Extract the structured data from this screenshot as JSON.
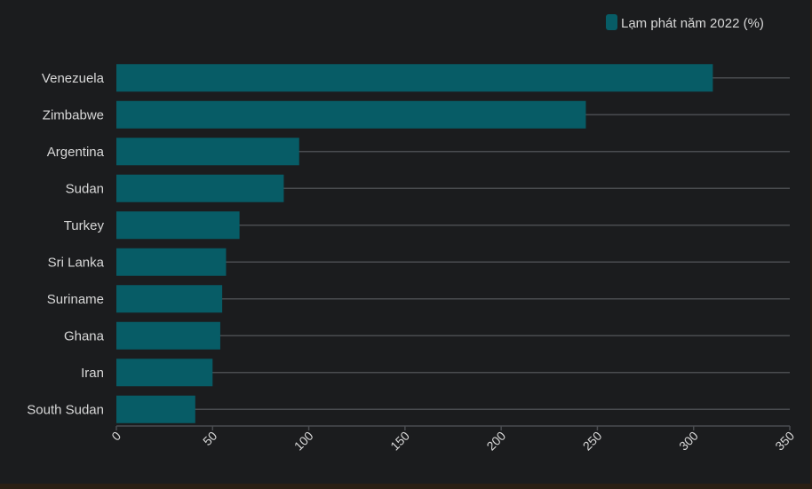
{
  "chart_data": {
    "type": "bar",
    "orientation": "horizontal",
    "title": "",
    "xlabel": "",
    "ylabel": "",
    "categories": [
      "Venezuela",
      "Zimbabwe",
      "Argentina",
      "Sudan",
      "Turkey",
      "Sri Lanka",
      "Suriname",
      "Ghana",
      "Iran",
      "South Sudan"
    ],
    "series": [
      {
        "name": "Lạm phát năm 2022 (%)",
        "values": [
          310,
          244,
          95,
          87,
          64,
          57,
          55,
          54,
          50,
          41
        ]
      }
    ],
    "xlim": [
      0,
      350
    ],
    "xticks": [
      "0",
      "50",
      "100",
      "150",
      "200",
      "250",
      "300",
      "350"
    ],
    "grid": true,
    "legend_position": "top-right",
    "colors": {
      "bar": "#075c66",
      "background": "#1b1c1e",
      "grid": "#4a4c50",
      "text": "#d8d8d8"
    }
  }
}
